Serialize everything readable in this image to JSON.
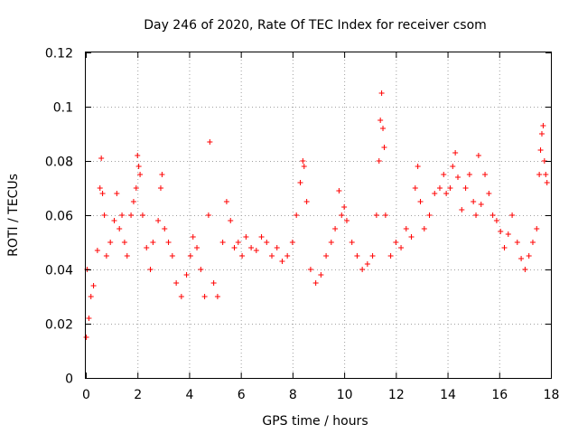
{
  "chart_data": {
    "type": "scatter",
    "title": "Day 246 of 2020, Rate Of TEC Index for receiver csom",
    "xlabel": "GPS time / hours",
    "ylabel": "ROTI / TECUs",
    "xlim": [
      0,
      18
    ],
    "ylim": [
      0,
      0.12
    ],
    "x_ticks": [
      "0",
      "2",
      "4",
      "6",
      "8",
      "10",
      "12",
      "14",
      "16",
      "18"
    ],
    "y_ticks": [
      "0",
      "0.02",
      "0.04",
      "0.06",
      "0.08",
      "0.1",
      "0.12"
    ],
    "grid": true,
    "marker": "+",
    "color": "#ff0000",
    "series": [
      {
        "name": "ROTI",
        "points": [
          [
            0.02,
            0.015
          ],
          [
            0.05,
            0.04
          ],
          [
            0.12,
            0.022
          ],
          [
            0.2,
            0.03
          ],
          [
            0.3,
            0.034
          ],
          [
            0.45,
            0.047
          ],
          [
            0.55,
            0.07
          ],
          [
            0.6,
            0.081
          ],
          [
            0.65,
            0.068
          ],
          [
            0.72,
            0.06
          ],
          [
            0.8,
            0.045
          ],
          [
            0.95,
            0.05
          ],
          [
            1.1,
            0.058
          ],
          [
            1.2,
            0.068
          ],
          [
            1.3,
            0.055
          ],
          [
            1.4,
            0.06
          ],
          [
            1.5,
            0.05
          ],
          [
            1.6,
            0.045
          ],
          [
            1.75,
            0.06
          ],
          [
            1.85,
            0.065
          ],
          [
            1.95,
            0.07
          ],
          [
            2.0,
            0.082
          ],
          [
            2.05,
            0.078
          ],
          [
            2.1,
            0.075
          ],
          [
            2.2,
            0.06
          ],
          [
            2.35,
            0.048
          ],
          [
            2.5,
            0.04
          ],
          [
            2.6,
            0.05
          ],
          [
            2.8,
            0.058
          ],
          [
            2.9,
            0.07
          ],
          [
            2.95,
            0.075
          ],
          [
            3.05,
            0.055
          ],
          [
            3.2,
            0.05
          ],
          [
            3.35,
            0.045
          ],
          [
            3.5,
            0.035
          ],
          [
            3.7,
            0.03
          ],
          [
            3.9,
            0.038
          ],
          [
            4.05,
            0.045
          ],
          [
            4.15,
            0.052
          ],
          [
            4.3,
            0.048
          ],
          [
            4.45,
            0.04
          ],
          [
            4.6,
            0.03
          ],
          [
            4.75,
            0.06
          ],
          [
            4.8,
            0.087
          ],
          [
            4.95,
            0.035
          ],
          [
            5.1,
            0.03
          ],
          [
            5.3,
            0.05
          ],
          [
            5.45,
            0.065
          ],
          [
            5.6,
            0.058
          ],
          [
            5.75,
            0.048
          ],
          [
            5.9,
            0.05
          ],
          [
            6.05,
            0.045
          ],
          [
            6.2,
            0.052
          ],
          [
            6.4,
            0.048
          ],
          [
            6.6,
            0.047
          ],
          [
            6.8,
            0.052
          ],
          [
            7.0,
            0.05
          ],
          [
            7.2,
            0.045
          ],
          [
            7.4,
            0.048
          ],
          [
            7.6,
            0.043
          ],
          [
            7.8,
            0.045
          ],
          [
            8.0,
            0.05
          ],
          [
            8.15,
            0.06
          ],
          [
            8.3,
            0.072
          ],
          [
            8.4,
            0.08
          ],
          [
            8.45,
            0.078
          ],
          [
            8.55,
            0.065
          ],
          [
            8.7,
            0.04
          ],
          [
            8.9,
            0.035
          ],
          [
            9.1,
            0.038
          ],
          [
            9.3,
            0.045
          ],
          [
            9.5,
            0.05
          ],
          [
            9.65,
            0.055
          ],
          [
            9.8,
            0.069
          ],
          [
            9.9,
            0.06
          ],
          [
            10.0,
            0.063
          ],
          [
            10.1,
            0.058
          ],
          [
            10.3,
            0.05
          ],
          [
            10.5,
            0.045
          ],
          [
            10.7,
            0.04
          ],
          [
            10.9,
            0.042
          ],
          [
            11.1,
            0.045
          ],
          [
            11.25,
            0.06
          ],
          [
            11.35,
            0.08
          ],
          [
            11.4,
            0.095
          ],
          [
            11.45,
            0.105
          ],
          [
            11.5,
            0.092
          ],
          [
            11.55,
            0.085
          ],
          [
            11.6,
            0.06
          ],
          [
            11.8,
            0.045
          ],
          [
            12.0,
            0.05
          ],
          [
            12.2,
            0.048
          ],
          [
            12.4,
            0.055
          ],
          [
            12.6,
            0.052
          ],
          [
            12.75,
            0.07
          ],
          [
            12.85,
            0.078
          ],
          [
            12.95,
            0.065
          ],
          [
            13.1,
            0.055
          ],
          [
            13.3,
            0.06
          ],
          [
            13.5,
            0.068
          ],
          [
            13.7,
            0.07
          ],
          [
            13.85,
            0.075
          ],
          [
            13.95,
            0.068
          ],
          [
            14.1,
            0.07
          ],
          [
            14.2,
            0.078
          ],
          [
            14.3,
            0.083
          ],
          [
            14.4,
            0.074
          ],
          [
            14.55,
            0.062
          ],
          [
            14.7,
            0.07
          ],
          [
            14.85,
            0.075
          ],
          [
            15.0,
            0.065
          ],
          [
            15.1,
            0.06
          ],
          [
            15.2,
            0.082
          ],
          [
            15.3,
            0.064
          ],
          [
            15.45,
            0.075
          ],
          [
            15.6,
            0.068
          ],
          [
            15.75,
            0.06
          ],
          [
            15.9,
            0.058
          ],
          [
            16.05,
            0.054
          ],
          [
            16.2,
            0.048
          ],
          [
            16.35,
            0.053
          ],
          [
            16.5,
            0.06
          ],
          [
            16.7,
            0.05
          ],
          [
            16.85,
            0.044
          ],
          [
            17.0,
            0.04
          ],
          [
            17.15,
            0.045
          ],
          [
            17.3,
            0.05
          ],
          [
            17.45,
            0.055
          ],
          [
            17.55,
            0.075
          ],
          [
            17.6,
            0.084
          ],
          [
            17.65,
            0.09
          ],
          [
            17.7,
            0.093
          ],
          [
            17.75,
            0.08
          ],
          [
            17.8,
            0.075
          ],
          [
            17.85,
            0.072
          ]
        ]
      }
    ]
  }
}
